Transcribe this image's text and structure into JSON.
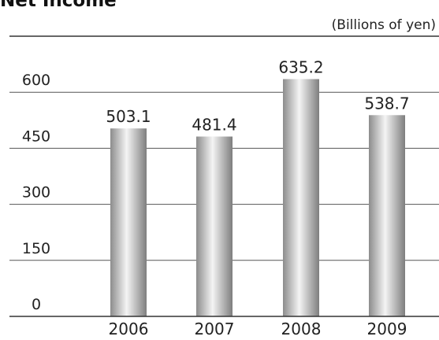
{
  "chart_data": {
    "type": "bar",
    "title": "Net Income",
    "unit": "(Billions of yen)",
    "categories": [
      "2006",
      "2007",
      "2008",
      "2009"
    ],
    "values": [
      503.1,
      481.4,
      635.2,
      538.7
    ],
    "value_labels": [
      "503.1",
      "481.4",
      "635.2",
      "538.7"
    ],
    "yticks": [
      "0",
      "150",
      "300",
      "450",
      "600"
    ],
    "ylim": [
      0,
      750
    ],
    "grid": true,
    "bar_color": "#b8b8b8"
  }
}
